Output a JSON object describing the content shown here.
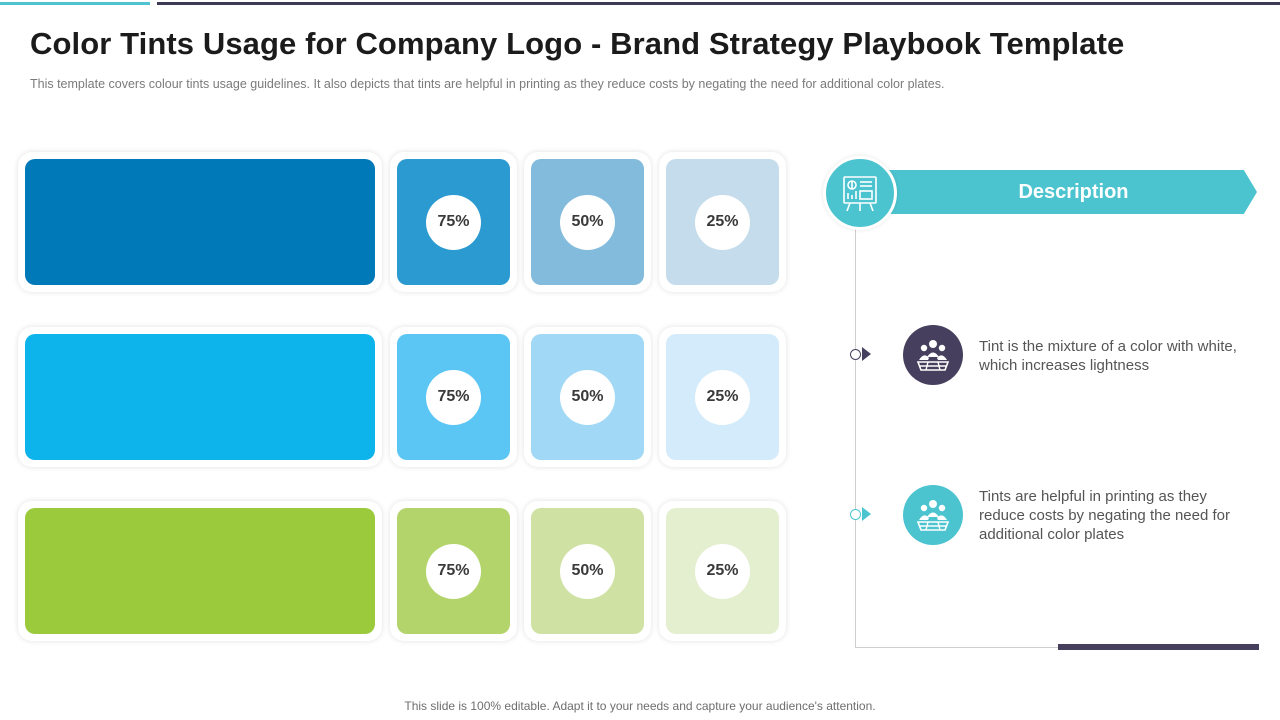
{
  "page": {
    "title": "Color Tints Usage for Company Logo - Brand Strategy Playbook Template",
    "subtitle": "This template covers  colour tints usage guidelines.  It also depicts that tints are helpful  in printing  as they reduce costs by negating  the need for additional color plates.",
    "footer": "This slide is 100% editable. Adapt it to your needs and capture your audience's attention."
  },
  "colors": {
    "accent_teal": "#4bc4cf",
    "dark_navy": "#46405e"
  },
  "swatches": [
    {
      "base": "#0079b8",
      "tints": [
        {
          "label": "75%",
          "color": "#2a9ad0"
        },
        {
          "label": "50%",
          "color": "#83bbdc"
        },
        {
          "label": "25%",
          "color": "#c4dceb"
        }
      ]
    },
    {
      "base": "#0db4ec",
      "tints": [
        {
          "label": "75%",
          "color": "#5bc6f3"
        },
        {
          "label": "50%",
          "color": "#a1d8f5"
        },
        {
          "label": "25%",
          "color": "#d3ebfa"
        }
      ]
    },
    {
      "base": "#9bca3c",
      "tints": [
        {
          "label": "75%",
          "color": "#b2d46b"
        },
        {
          "label": "50%",
          "color": "#cfe2a3"
        },
        {
          "label": "25%",
          "color": "#e4efd0"
        }
      ]
    }
  ],
  "description": {
    "header": "Description",
    "header_icon": "presentation-board-icon",
    "items": [
      {
        "text": "Tint  is the mixture  of a color with white,   which increases lightness",
        "icon": "team-meeting-icon",
        "color": "#46405e"
      },
      {
        "text": "Tints  are helpful  in printing  as they reduce costs by negating the need for additional color plates",
        "icon": "team-meeting-icon",
        "color": "#4bc4cf"
      }
    ]
  }
}
